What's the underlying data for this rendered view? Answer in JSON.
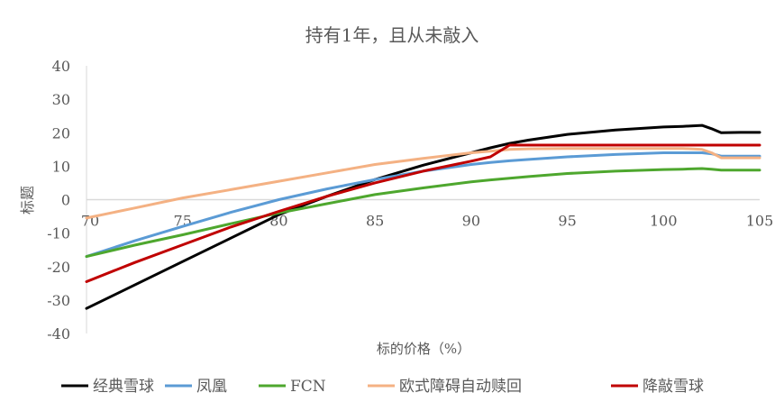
{
  "chart_data": {
    "type": "line",
    "title": "持有1年，且从未敲入",
    "xlabel": "标的价格（%）",
    "ylabel": "标题",
    "xlim": [
      70,
      105
    ],
    "ylim": [
      -40,
      40
    ],
    "x_ticks": [
      "70",
      "75",
      "80",
      "85",
      "90",
      "95",
      "100",
      "105"
    ],
    "y_ticks": [
      "40",
      "30",
      "20",
      "10",
      "0",
      "-10",
      "-20",
      "-30",
      "-40"
    ],
    "grid": "zero-line only",
    "legend_position": "bottom",
    "x": [
      70,
      72.5,
      75,
      77.5,
      80,
      82.5,
      85,
      87.5,
      90,
      91,
      92,
      93,
      95,
      97.5,
      100,
      101,
      102,
      102.5,
      103,
      104,
      105
    ],
    "series": [
      {
        "name": "经典雪球",
        "color": "#000000",
        "values": [
          -32.5,
          -25.5,
          -18.5,
          -11.5,
          -4.5,
          1,
          6,
          10.3,
          14,
          15.5,
          16.8,
          17.8,
          19.5,
          20.8,
          21.7,
          21.9,
          22.2,
          21.2,
          20,
          20.1,
          20.1
        ]
      },
      {
        "name": "凤凰",
        "color": "#5B9BD5",
        "values": [
          -17,
          -12.3,
          -8,
          -3.8,
          0,
          3.2,
          6,
          8.5,
          10.5,
          11.1,
          11.6,
          12,
          12.8,
          13.5,
          14,
          14,
          14,
          13.7,
          13,
          13,
          13
        ]
      },
      {
        "name": "FCN",
        "color": "#4EA72E",
        "values": [
          -17,
          -13.6,
          -10.5,
          -7.2,
          -4,
          -1.2,
          1.5,
          3.5,
          5.3,
          5.9,
          6.4,
          6.9,
          7.8,
          8.5,
          9,
          9.1,
          9.3,
          9.1,
          8.8,
          8.8,
          8.8
        ]
      },
      {
        "name": "欧式障碍自动赎回",
        "color": "#F4B183",
        "values": [
          -5.5,
          -2.5,
          0.5,
          3,
          5.5,
          8,
          10.5,
          12.3,
          14,
          14.5,
          15,
          15.2,
          15.3,
          15.3,
          15.3,
          15.3,
          15,
          14,
          12.5,
          12.5,
          12.5
        ]
      },
      {
        "name": "降敲雪球",
        "color": "#C00000",
        "values": [
          -24.5,
          -18.8,
          -13.5,
          -8.2,
          -3.5,
          1,
          5,
          8.5,
          11.5,
          12.8,
          16.3,
          16.3,
          16.3,
          16.3,
          16.3,
          16.3,
          16.3,
          16.3,
          16.3,
          16.3,
          16.3
        ]
      }
    ]
  }
}
